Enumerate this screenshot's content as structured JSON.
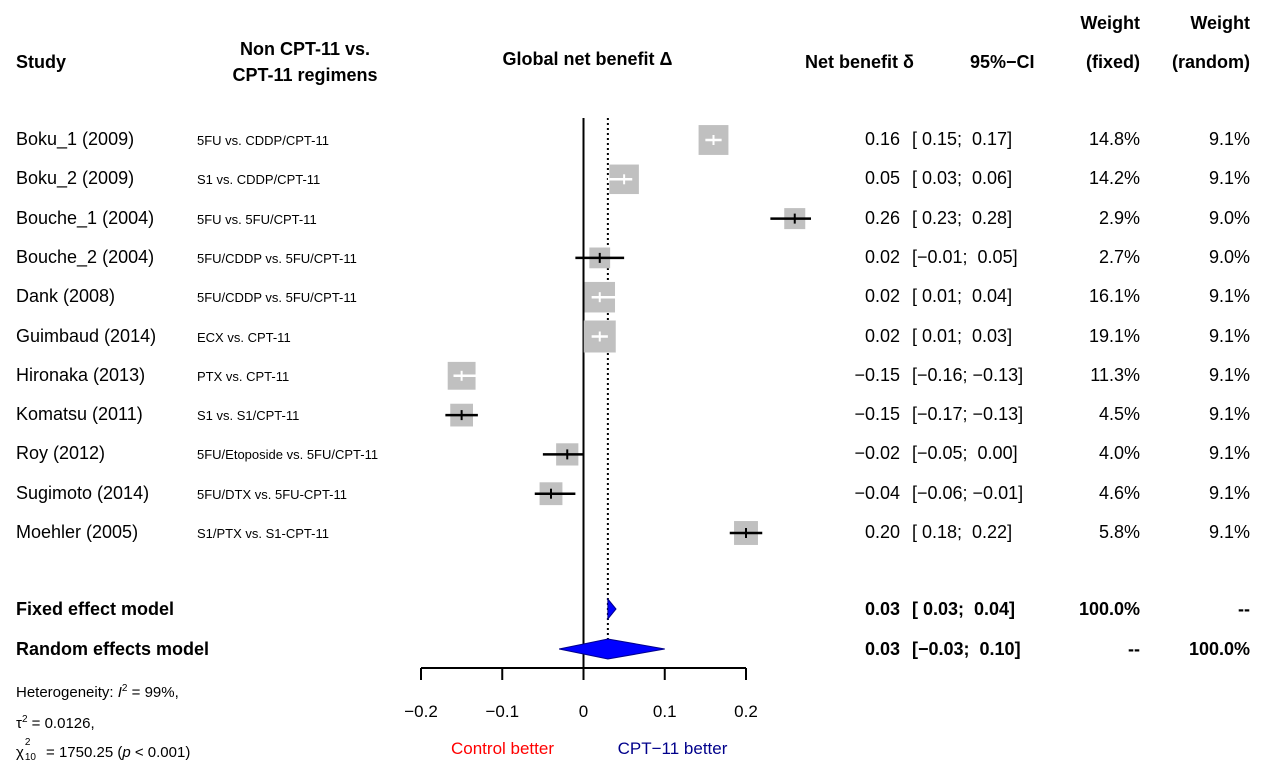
{
  "headers": {
    "study": "Study",
    "comparison_line1": "Non CPT-11 vs.",
    "comparison_line2": "CPT-11 regimens",
    "global": "Global net benefit Δ",
    "net_benefit": "Net benefit δ",
    "ci": "95%−CI",
    "weight_fixed_line1": "Weight",
    "weight_fixed_line2": "(fixed)",
    "weight_random_line1": "Weight",
    "weight_random_line2": "(random)"
  },
  "studies": [
    {
      "name": "Boku_1 (2009)",
      "comparison": "5FU vs. CDDP/CPT-11",
      "effect": "0.16",
      "ci": "[ 0.15;  0.17]",
      "w_fixed": "14.8%",
      "w_random": "9.1%"
    },
    {
      "name": "Boku_2 (2009)",
      "comparison": "S1 vs. CDDP/CPT-11",
      "effect": "0.05",
      "ci": "[ 0.03;  0.06]",
      "w_fixed": "14.2%",
      "w_random": "9.1%"
    },
    {
      "name": "Bouche_1 (2004)",
      "comparison": "5FU vs. 5FU/CPT-11",
      "effect": "0.26",
      "ci": "[ 0.23;  0.28]",
      "w_fixed": "2.9%",
      "w_random": "9.0%"
    },
    {
      "name": "Bouche_2 (2004)",
      "comparison": "5FU/CDDP vs. 5FU/CPT-11",
      "effect": "0.02",
      "ci": "[−0.01;  0.05]",
      "w_fixed": "2.7%",
      "w_random": "9.0%"
    },
    {
      "name": "Dank (2008)",
      "comparison": "5FU/CDDP vs. 5FU/CPT-11",
      "effect": "0.02",
      "ci": "[ 0.01;  0.04]",
      "w_fixed": "16.1%",
      "w_random": "9.1%"
    },
    {
      "name": "Guimbaud (2014)",
      "comparison": "ECX vs. CPT-11",
      "effect": "0.02",
      "ci": "[ 0.01;  0.03]",
      "w_fixed": "19.1%",
      "w_random": "9.1%"
    },
    {
      "name": "Hironaka (2013)",
      "comparison": "PTX vs. CPT-11",
      "effect": "−0.15",
      "ci": "[−0.16; −0.13]",
      "w_fixed": "11.3%",
      "w_random": "9.1%"
    },
    {
      "name": "Komatsu (2011)",
      "comparison": "S1 vs. S1/CPT-11",
      "effect": "−0.15",
      "ci": "[−0.17; −0.13]",
      "w_fixed": "4.5%",
      "w_random": "9.1%"
    },
    {
      "name": "Roy (2012)",
      "comparison": "5FU/Etoposide vs. 5FU/CPT-11",
      "effect": "−0.02",
      "ci": "[−0.05;  0.00]",
      "w_fixed": "4.0%",
      "w_random": "9.1%"
    },
    {
      "name": "Sugimoto (2014)",
      "comparison": "5FU/DTX vs. 5FU-CPT-11",
      "effect": "−0.04",
      "ci": "[−0.06; −0.01]",
      "w_fixed": "4.6%",
      "w_random": "9.1%"
    },
    {
      "name": "Moehler (2005)",
      "comparison": "S1/PTX vs. S1-CPT-11",
      "effect": "0.20",
      "ci": "[ 0.18;  0.22]",
      "w_fixed": "5.8%",
      "w_random": "9.1%"
    }
  ],
  "summaries": [
    {
      "name": "Fixed effect model",
      "effect": "0.03",
      "ci": "[ 0.03;  0.04]",
      "w_fixed": "100.0%",
      "w_random": "--"
    },
    {
      "name": "Random effects model",
      "effect": "0.03",
      "ci": "[−0.03;  0.10]",
      "w_fixed": "--",
      "w_random": "100.0%"
    }
  ],
  "heterogeneity": {
    "line1_prefix": "Heterogeneity: ",
    "i_symbol": "I",
    "i_sup": "2",
    "line1_value": " = 99%,",
    "tau_symbol": "τ",
    "tau_sup": "2",
    "tau_value": " = 0.0126,",
    "chi_symbol": "χ",
    "chi_sup": "2",
    "chi_sub": "10",
    "chi_value": " = 1750.25 (",
    "p_symbol": "p",
    "p_value": " < 0.001)"
  },
  "axis": {
    "ticks": [
      -0.2,
      -0.1,
      0,
      0.1,
      0.2
    ],
    "tick_labels": [
      "−0.2",
      "−0.1",
      "0",
      "0.1",
      "0.2"
    ],
    "xlim": [
      -0.2,
      0.2
    ],
    "left_label": "Control better",
    "right_label": "CPT−11 better",
    "left_label_color": "#ff0000",
    "right_label_color": "#00008b"
  },
  "chart_data": {
    "type": "forest",
    "xlim": [
      -0.2,
      0.2
    ],
    "null_line": 0,
    "summary_line": 0.03,
    "series": [
      {
        "study": "Boku_1 (2009)",
        "effect": 0.16,
        "lower": 0.15,
        "upper": 0.17,
        "weight_fixed": 14.8
      },
      {
        "study": "Boku_2 (2009)",
        "effect": 0.05,
        "lower": 0.03,
        "upper": 0.06,
        "weight_fixed": 14.2
      },
      {
        "study": "Bouche_1 (2004)",
        "effect": 0.26,
        "lower": 0.23,
        "upper": 0.28,
        "weight_fixed": 2.9
      },
      {
        "study": "Bouche_2 (2004)",
        "effect": 0.02,
        "lower": -0.01,
        "upper": 0.05,
        "weight_fixed": 2.7
      },
      {
        "study": "Dank (2008)",
        "effect": 0.02,
        "lower": 0.01,
        "upper": 0.04,
        "weight_fixed": 16.1
      },
      {
        "study": "Guimbaud (2014)",
        "effect": 0.02,
        "lower": 0.01,
        "upper": 0.03,
        "weight_fixed": 19.1
      },
      {
        "study": "Hironaka (2013)",
        "effect": -0.15,
        "lower": -0.16,
        "upper": -0.13,
        "weight_fixed": 11.3
      },
      {
        "study": "Komatsu (2011)",
        "effect": -0.15,
        "lower": -0.17,
        "upper": -0.13,
        "weight_fixed": 4.5
      },
      {
        "study": "Roy (2012)",
        "effect": -0.02,
        "lower": -0.05,
        "upper": 0.0,
        "weight_fixed": 4.0
      },
      {
        "study": "Sugimoto (2014)",
        "effect": -0.04,
        "lower": -0.06,
        "upper": -0.01,
        "weight_fixed": 4.6
      },
      {
        "study": "Moehler (2005)",
        "effect": 0.2,
        "lower": 0.18,
        "upper": 0.22,
        "weight_fixed": 5.8
      }
    ],
    "summaries": [
      {
        "model": "Fixed effect model",
        "effect": 0.03,
        "lower": 0.03,
        "upper": 0.04
      },
      {
        "model": "Random effects model",
        "effect": 0.03,
        "lower": -0.03,
        "upper": 0.1
      }
    ],
    "colors": {
      "box": "#c0c0c0",
      "ci_line": "#000000",
      "diamond": "#0000ff"
    }
  }
}
